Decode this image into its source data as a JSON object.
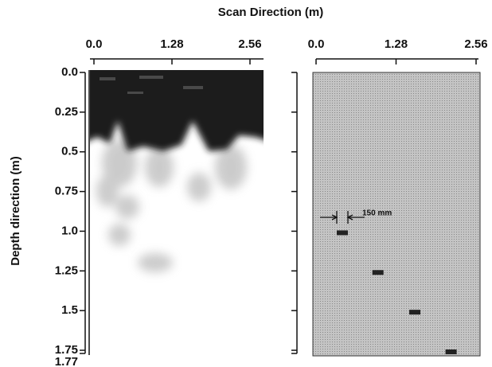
{
  "chart_data": [
    {
      "type": "image",
      "x_label": "Scan Direction (m)",
      "y_label": "Depth direction (m)",
      "xlim": [
        0,
        2.56
      ],
      "xticks": [
        {
          "value": 0,
          "label": "0.0"
        },
        1.28,
        2.56
      ],
      "ylim": [
        0,
        1.77
      ],
      "yticks": [
        {
          "value": 0,
          "label": "0.0"
        },
        0.25,
        0.5,
        0.75,
        {
          "value": 1,
          "label": "1.0"
        },
        1.25,
        1.5,
        1.75,
        1.77
      ]
    },
    {
      "type": "scatter",
      "annotation": "150 mm",
      "color": "#222",
      "xlim": [
        0,
        2.56
      ],
      "xticks": [
        {
          "value": 0,
          "label": "0.0"
        },
        1.28,
        2.56
      ],
      "ylim": [
        0,
        1.77
      ],
      "x": [
        0.42,
        0.99,
        1.58,
        2.16
      ],
      "values": [
        1.01,
        1.26,
        1.51,
        1.76
      ]
    }
  ]
}
